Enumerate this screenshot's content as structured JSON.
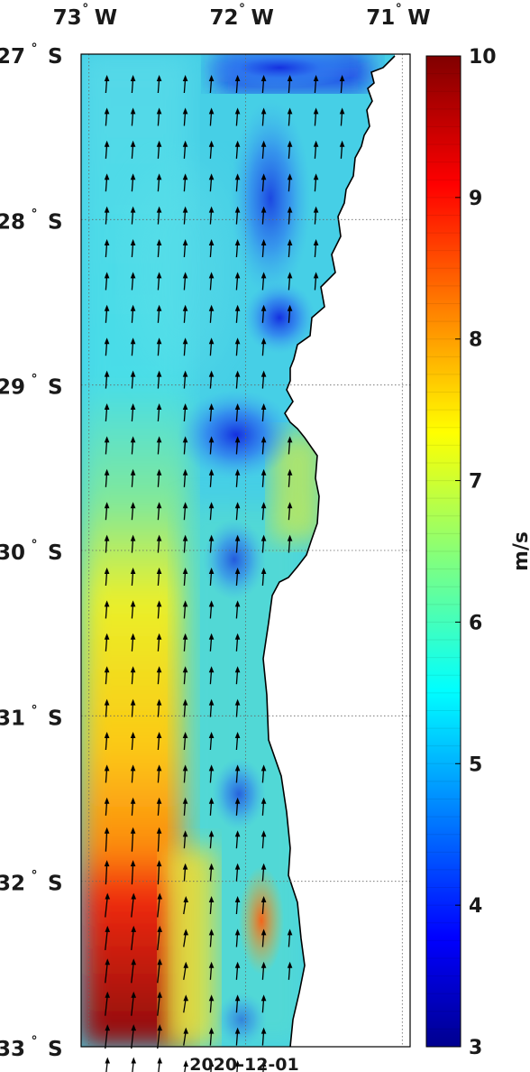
{
  "map": {
    "date_label": "2020-12-01",
    "lon_ticks": [
      {
        "value": -73,
        "deg": "73",
        "hemi": "W"
      },
      {
        "value": -72,
        "deg": "72",
        "hemi": "W"
      },
      {
        "value": -71,
        "deg": "71",
        "hemi": "W"
      }
    ],
    "lat_ticks": [
      {
        "value": -27,
        "deg": "27",
        "hemi": "S"
      },
      {
        "value": -28,
        "deg": "28",
        "hemi": "S"
      },
      {
        "value": -29,
        "deg": "29",
        "hemi": "S"
      },
      {
        "value": -30,
        "deg": "30",
        "hemi": "S"
      },
      {
        "value": -31,
        "deg": "31",
        "hemi": "S"
      },
      {
        "value": -32,
        "deg": "32",
        "hemi": "S"
      },
      {
        "value": -33,
        "deg": "33",
        "hemi": "S"
      }
    ],
    "lon_range": [
      -73.05,
      -70.95
    ],
    "lat_range": [
      -33,
      -27
    ],
    "colorbar": {
      "unit": "m/s",
      "min": 3,
      "max": 10,
      "ticks": [
        "10",
        "9",
        "8",
        "7",
        "6",
        "5",
        "4",
        "3"
      ],
      "colormap": "jet"
    },
    "gridlines": "dotted",
    "arrow_direction": "north"
  }
}
